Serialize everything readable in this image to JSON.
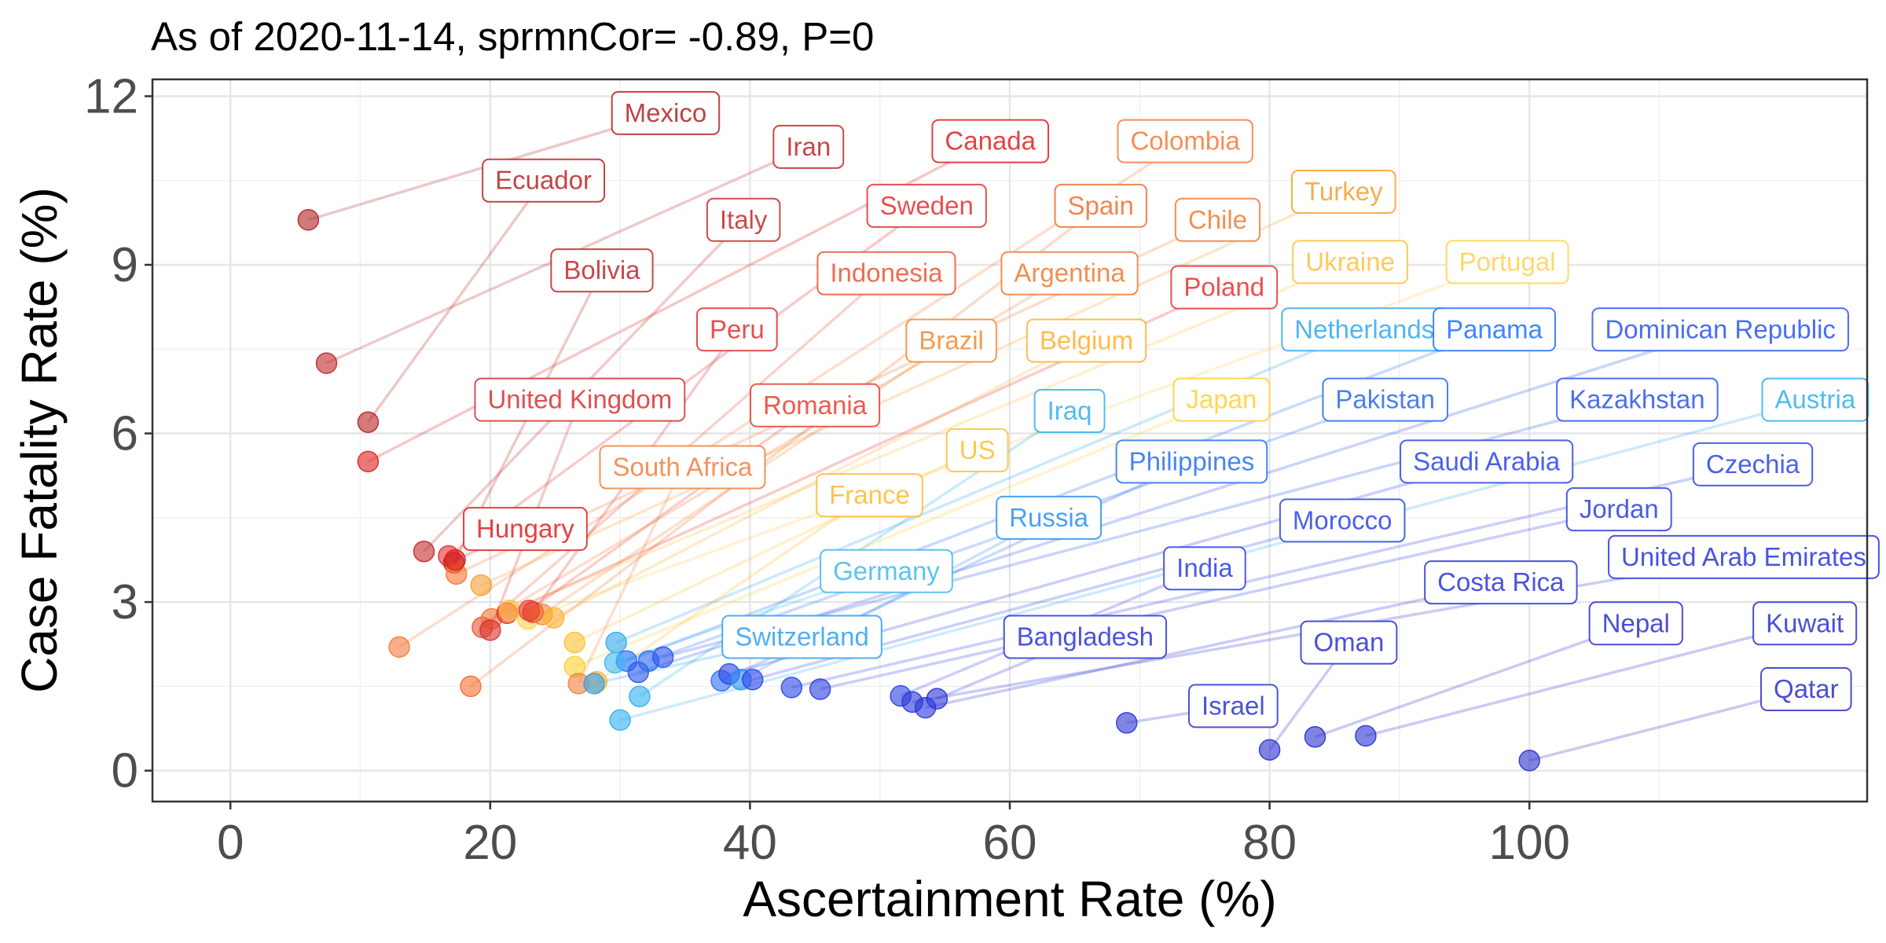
{
  "chart_data": {
    "type": "scatter",
    "title": "As of 2020-11-14, sprmnCor= -0.89, P=0",
    "xlabel": "Ascertainment Rate (%)",
    "ylabel": "Case Fatality Rate (%)",
    "xlim": [
      -6,
      126
    ],
    "ylim": [
      -0.55,
      12.3
    ],
    "xticks": [
      0,
      20,
      40,
      60,
      80,
      100
    ],
    "yticks": [
      0,
      3,
      6,
      9,
      12
    ],
    "grid": true,
    "legend": "none",
    "points": [
      {
        "name": "Mexico",
        "x": 6.0,
        "y": 9.8,
        "label_x": 33.5,
        "label_y": 11.7,
        "color": "#b22222"
      },
      {
        "name": "Iran",
        "x": 7.4,
        "y": 7.25,
        "label_x": 44.5,
        "label_y": 11.1,
        "color": "#c02828"
      },
      {
        "name": "Ecuador",
        "x": 10.6,
        "y": 6.2,
        "label_x": 24.1,
        "label_y": 10.5,
        "color": "#b82424"
      },
      {
        "name": "Canada",
        "x": 10.6,
        "y": 5.5,
        "label_x": 58.5,
        "label_y": 11.2,
        "color": "#e02020"
      },
      {
        "name": "Italy",
        "x": 14.9,
        "y": 3.9,
        "label_x": 39.5,
        "label_y": 9.8,
        "color": "#c42a2a"
      },
      {
        "name": "Sweden",
        "x": 16.8,
        "y": 3.82,
        "label_x": 53.6,
        "label_y": 10.05,
        "color": "#e43030"
      },
      {
        "name": "Colombia",
        "x": 13.0,
        "y": 2.2,
        "label_x": 73.5,
        "label_y": 11.2,
        "color": "#f57a3a"
      },
      {
        "name": "Spain",
        "x": 18.5,
        "y": 1.5,
        "label_x": 67.0,
        "label_y": 10.05,
        "color": "#f07030"
      },
      {
        "name": "Bolivia",
        "x": 17.2,
        "y": 3.7,
        "label_x": 28.6,
        "label_y": 8.9,
        "color": "#c02828"
      },
      {
        "name": "Chile",
        "x": 17.4,
        "y": 3.5,
        "label_x": 76.0,
        "label_y": 9.8,
        "color": "#f57a30"
      },
      {
        "name": "Turkey",
        "x": 19.3,
        "y": 3.3,
        "label_x": 85.7,
        "label_y": 10.3,
        "color": "#f5a030"
      },
      {
        "name": "Indonesia",
        "x": 19.4,
        "y": 2.55,
        "label_x": 50.5,
        "label_y": 8.85,
        "color": "#e85535"
      },
      {
        "name": "Argentina",
        "x": 20.1,
        "y": 2.7,
        "label_x": 64.6,
        "label_y": 8.85,
        "color": "#f07a35"
      },
      {
        "name": "Poland",
        "x": 21.3,
        "y": 2.8,
        "label_x": 76.5,
        "label_y": 8.6,
        "color": "#e83030"
      },
      {
        "name": "Ukraine",
        "x": 21.5,
        "y": 2.85,
        "label_x": 86.2,
        "label_y": 9.05,
        "color": "#ffc040"
      },
      {
        "name": "Portugal",
        "x": 22.9,
        "y": 2.7,
        "label_x": 98.3,
        "label_y": 9.05,
        "color": "#ffd050"
      },
      {
        "name": "Peru",
        "x": 23.3,
        "y": 2.82,
        "label_x": 39.0,
        "label_y": 7.85,
        "color": "#e03030"
      },
      {
        "name": "Brazil",
        "x": 24.0,
        "y": 2.78,
        "label_x": 55.5,
        "label_y": 7.65,
        "color": "#f08a30"
      },
      {
        "name": "Belgium",
        "x": 24.9,
        "y": 2.72,
        "label_x": 65.9,
        "label_y": 7.65,
        "color": "#ffb030"
      },
      {
        "name": "Netherlands",
        "x": 29.7,
        "y": 2.28,
        "label_x": 87.3,
        "label_y": 7.85,
        "color": "#30a8f0"
      },
      {
        "name": "Panama",
        "x": 30.5,
        "y": 1.95,
        "label_x": 97.3,
        "label_y": 7.85,
        "color": "#1e70ff"
      },
      {
        "name": "Dominican Republic",
        "x": 31.4,
        "y": 1.75,
        "label_x": 114.7,
        "label_y": 7.85,
        "color": "#2a55ee"
      },
      {
        "name": "United Kingdom",
        "x": 20.0,
        "y": 2.5,
        "label_x": 26.9,
        "label_y": 6.6,
        "color": "#d83030"
      },
      {
        "name": "Romania",
        "x": 23.0,
        "y": 2.85,
        "label_x": 45.0,
        "label_y": 6.5,
        "color": "#e84030"
      },
      {
        "name": "Iraq",
        "x": 31.5,
        "y": 1.32,
        "label_x": 64.6,
        "label_y": 6.4,
        "color": "#30b0f0"
      },
      {
        "name": "Japan",
        "x": 26.5,
        "y": 1.85,
        "label_x": 76.3,
        "label_y": 6.6,
        "color": "#ffd030"
      },
      {
        "name": "Pakistan",
        "x": 32.2,
        "y": 1.95,
        "label_x": 88.9,
        "label_y": 6.6,
        "color": "#2a6af0"
      },
      {
        "name": "Kazakhstan",
        "x": 33.3,
        "y": 2.02,
        "label_x": 108.3,
        "label_y": 6.6,
        "color": "#2a55ee"
      },
      {
        "name": "Austria",
        "x": 30.0,
        "y": 0.9,
        "label_x": 122.0,
        "label_y": 6.6,
        "color": "#30b0f0"
      },
      {
        "name": "US",
        "x": 26.5,
        "y": 2.28,
        "label_x": 57.5,
        "label_y": 5.7,
        "color": "#ffc030"
      },
      {
        "name": "South Africa",
        "x": 26.8,
        "y": 1.55,
        "label_x": 34.8,
        "label_y": 5.4,
        "color": "#f08040"
      },
      {
        "name": "Philippines",
        "x": 37.8,
        "y": 1.6,
        "label_x": 74.0,
        "label_y": 5.5,
        "color": "#2a70f0"
      },
      {
        "name": "Saudi Arabia",
        "x": 38.4,
        "y": 1.72,
        "label_x": 96.7,
        "label_y": 5.5,
        "color": "#2a45e8"
      },
      {
        "name": "Czechia",
        "x": 43.2,
        "y": 1.48,
        "label_x": 117.2,
        "label_y": 5.45,
        "color": "#2a45e8"
      },
      {
        "name": "France",
        "x": 28.2,
        "y": 1.58,
        "label_x": 49.2,
        "label_y": 4.9,
        "color": "#ffb830"
      },
      {
        "name": "Russia",
        "x": 39.3,
        "y": 1.62,
        "label_x": 63.0,
        "label_y": 4.5,
        "color": "#2a90f0"
      },
      {
        "name": "Morocco",
        "x": 40.2,
        "y": 1.62,
        "label_x": 85.6,
        "label_y": 4.45,
        "color": "#2a45e8"
      },
      {
        "name": "Jordan",
        "x": 45.4,
        "y": 1.45,
        "label_x": 106.9,
        "label_y": 4.65,
        "color": "#2a40e0"
      },
      {
        "name": "Hungary",
        "x": 17.3,
        "y": 3.75,
        "label_x": 22.7,
        "label_y": 4.3,
        "color": "#e02020"
      },
      {
        "name": "Germany",
        "x": 29.6,
        "y": 1.92,
        "label_x": 50.5,
        "label_y": 3.55,
        "color": "#40b8f0"
      },
      {
        "name": "India",
        "x": 51.6,
        "y": 1.33,
        "label_x": 75.0,
        "label_y": 3.6,
        "color": "#2a40e0"
      },
      {
        "name": "United Arab Emirates",
        "x": 52.5,
        "y": 1.22,
        "label_x": 116.5,
        "label_y": 3.8,
        "color": "#2a35d8"
      },
      {
        "name": "Costa Rica",
        "x": 53.5,
        "y": 1.12,
        "label_x": 97.8,
        "label_y": 3.35,
        "color": "#2a35d8"
      },
      {
        "name": "Switzerland",
        "x": 28.0,
        "y": 1.55,
        "label_x": 44.0,
        "label_y": 2.38,
        "color": "#30a0f0"
      },
      {
        "name": "Bangladesh",
        "x": 54.4,
        "y": 1.28,
        "label_x": 65.8,
        "label_y": 2.38,
        "color": "#2a35d8"
      },
      {
        "name": "Nepal",
        "x": 83.5,
        "y": 0.6,
        "label_x": 108.2,
        "label_y": 2.62,
        "color": "#2a30d0"
      },
      {
        "name": "Kuwait",
        "x": 87.4,
        "y": 0.62,
        "label_x": 121.2,
        "label_y": 2.62,
        "color": "#2a30d0"
      },
      {
        "name": "Oman",
        "x": 80.0,
        "y": 0.37,
        "label_x": 86.1,
        "label_y": 2.28,
        "color": "#2a30d0"
      },
      {
        "name": "Israel",
        "x": 69.0,
        "y": 0.85,
        "label_x": 77.2,
        "label_y": 1.15,
        "color": "#2a35d0"
      },
      {
        "name": "Qatar",
        "x": 100.0,
        "y": 0.18,
        "label_x": 121.3,
        "label_y": 1.45,
        "color": "#2a30c8"
      }
    ]
  }
}
